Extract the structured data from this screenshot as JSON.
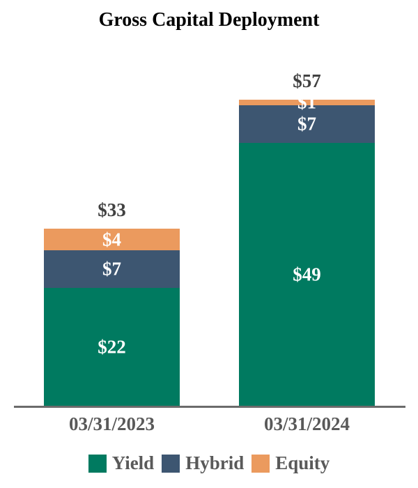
{
  "chart_data": {
    "type": "bar",
    "stacked": true,
    "title": "Gross Capital Deployment",
    "categories": [
      "03/31/2023",
      "03/31/2024"
    ],
    "series": [
      {
        "name": "Yield",
        "color": "#007A60",
        "values": [
          22,
          49
        ]
      },
      {
        "name": "Hybrid",
        "color": "#3D5671",
        "values": [
          7,
          7
        ]
      },
      {
        "name": "Equity",
        "color": "#EB9A5E",
        "values": [
          4,
          1
        ]
      }
    ],
    "totals": [
      33,
      57
    ],
    "value_prefix": "$",
    "ylim": [
      0,
      57
    ],
    "grid": false,
    "legend_position": "bottom",
    "colors": {
      "title_text": "#000000",
      "total_label_text": "#414141",
      "category_label_text": "#595959",
      "segment_label_text": "#FFFFFF",
      "legend_text": "#595959",
      "axis_line": "#6B6B6B",
      "background": "#FFFFFF"
    }
  }
}
